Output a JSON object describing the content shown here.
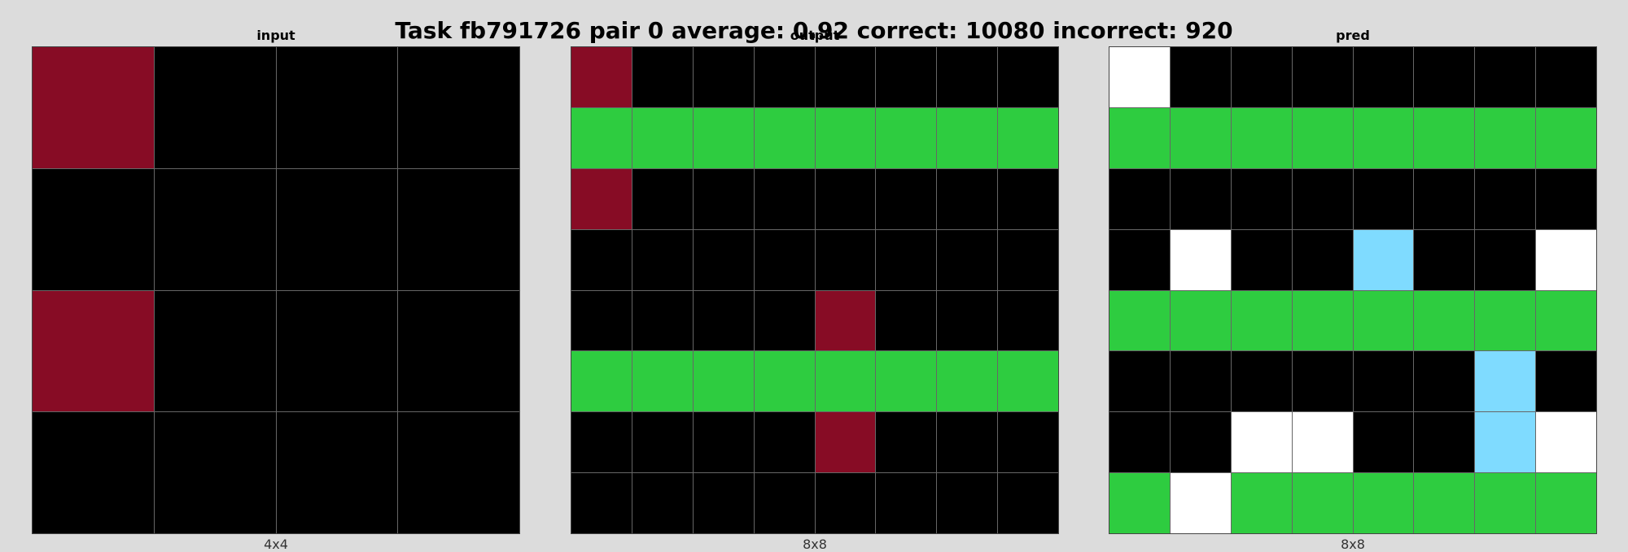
{
  "title": "Task fb791726 pair 0 average: 0.92 correct: 10080 incorrect: 920",
  "colors": {
    "0": "#000000",
    "1": "#ffffff",
    "2": "#870c25",
    "3": "#2ecc40",
    "4": "#7fdbff"
  },
  "panels": [
    {
      "title": "input",
      "dims": "4x4",
      "grid": [
        [
          2,
          0,
          0,
          0
        ],
        [
          0,
          0,
          0,
          0
        ],
        [
          2,
          0,
          0,
          0
        ],
        [
          0,
          0,
          0,
          0
        ]
      ]
    },
    {
      "title": "output",
      "dims": "8x8",
      "grid": [
        [
          2,
          0,
          0,
          0,
          0,
          0,
          0,
          0
        ],
        [
          3,
          3,
          3,
          3,
          3,
          3,
          3,
          3
        ],
        [
          2,
          0,
          0,
          0,
          0,
          0,
          0,
          0
        ],
        [
          0,
          0,
          0,
          0,
          0,
          0,
          0,
          0
        ],
        [
          0,
          0,
          0,
          0,
          2,
          0,
          0,
          0
        ],
        [
          3,
          3,
          3,
          3,
          3,
          3,
          3,
          3
        ],
        [
          0,
          0,
          0,
          0,
          2,
          0,
          0,
          0
        ],
        [
          0,
          0,
          0,
          0,
          0,
          0,
          0,
          0
        ]
      ]
    },
    {
      "title": "pred",
      "dims": "8x8",
      "grid": [
        [
          1,
          0,
          0,
          0,
          0,
          0,
          0,
          0
        ],
        [
          3,
          3,
          3,
          3,
          3,
          3,
          3,
          3
        ],
        [
          0,
          0,
          0,
          0,
          0,
          0,
          0,
          0
        ],
        [
          0,
          1,
          0,
          0,
          4,
          0,
          0,
          1
        ],
        [
          3,
          3,
          3,
          3,
          3,
          3,
          3,
          3
        ],
        [
          0,
          0,
          0,
          0,
          0,
          0,
          4,
          0
        ],
        [
          0,
          0,
          1,
          1,
          0,
          0,
          4,
          1
        ],
        [
          3,
          1,
          3,
          3,
          3,
          3,
          3,
          3
        ]
      ]
    }
  ]
}
